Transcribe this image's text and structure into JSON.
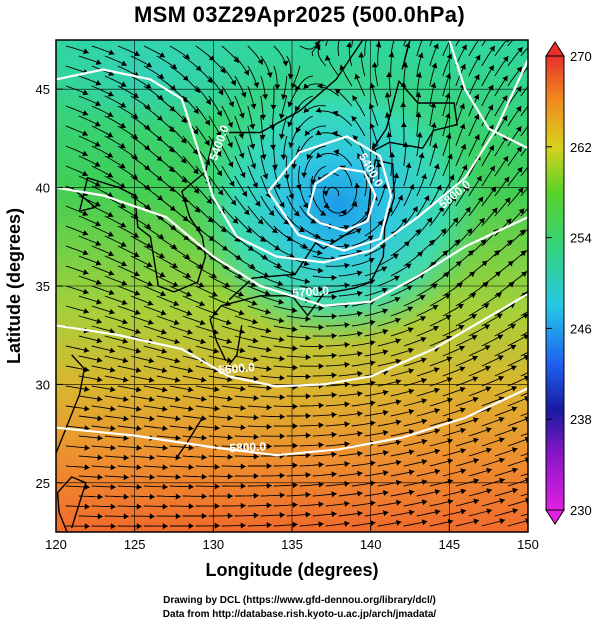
{
  "title": "MSM 03Z29Apr2025 (500.0hPa)",
  "footer": {
    "line1": "Drawing by DCL (https://www.gfd-dennou.org/library/dcl/)",
    "line2": "Data from http://database.rish.kyoto-u.ac.jp/arch/jmadata/"
  },
  "map": {
    "type": "field",
    "xlabel": "Longitude (degrees)",
    "ylabel": "Latitude  (degrees)",
    "xlim": [
      120,
      150
    ],
    "ylim": [
      22.5,
      47.5
    ],
    "xticks": [
      120,
      125,
      130,
      135,
      140,
      145,
      150
    ],
    "yticks": [
      25,
      30,
      35,
      40,
      45
    ],
    "grid": true,
    "colorbar": {
      "min": 230,
      "max": 270,
      "ticks": [
        230,
        238,
        246,
        254,
        262,
        270
      ]
    },
    "contour_labels": [
      "5400.0",
      "5400.0",
      "5700.0",
      "5600.0",
      "5800.0",
      "5800.0"
    ]
  }
}
